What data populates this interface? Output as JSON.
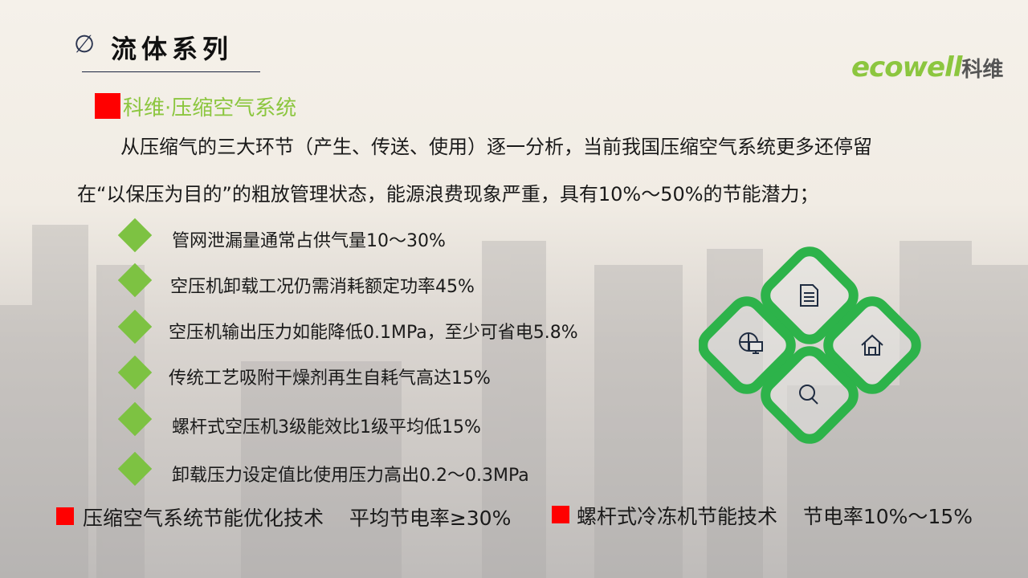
{
  "header": {
    "title": "流体系列",
    "logo_text": "ecowell",
    "logo_cn": "科维"
  },
  "section": {
    "subtitle": "科维·压缩空气系统"
  },
  "intro": {
    "line1": "从压缩气的三大环节（产生、传送、使用）逐一分析，当前我国压缩空气系统更多还停留",
    "line2": "在“以保压为目的”的粗放管理状态，能源浪费现象严重，具有10%～50%的节能潜力；"
  },
  "bullets": [
    "管网泄漏量通常占供气量10～30%",
    "空压机卸载工况仍需消耗额定功率45%",
    "空压机输出压力如能降低0.1MPa，至少可省电5.8%",
    "传统工艺吸附干燥剂再生自耗气高达15%",
    "螺杆式空压机3级能效比1级平均低15%",
    "卸载压力设定值比使用压力高出0.2～0.3MPa"
  ],
  "footer": [
    {
      "label": "压缩空气系统节能优化技术",
      "value": "平均节电率≥30%"
    },
    {
      "label": "螺杆式冷冻机节能技术",
      "value": "节电率10%～15%"
    }
  ],
  "diagram_icons": [
    "document-icon",
    "globe-monitor-icon",
    "home-icon",
    "search-icon"
  ],
  "colors": {
    "accent_green": "#8cc63f",
    "diagram_green": "#2db34a",
    "red": "#ff0000",
    "bullet_green": "#7dc242"
  }
}
